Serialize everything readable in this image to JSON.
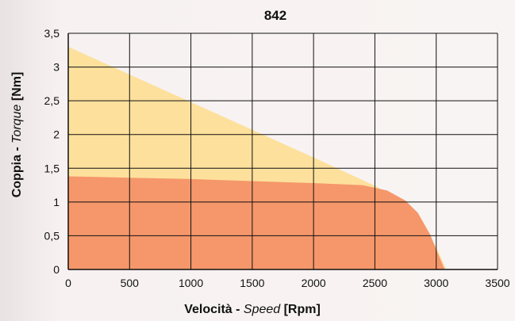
{
  "chart_data": {
    "type": "area",
    "title": "842",
    "xlabel": {
      "prefix": "Velocità - ",
      "italic": "Speed",
      "suffix": " [Rpm]"
    },
    "ylabel": {
      "prefix": "Coppia - ",
      "italic": "Torque",
      "suffix": " [Nm]"
    },
    "xlim": [
      0,
      3500
    ],
    "ylim": [
      0,
      3.5
    ],
    "x_ticks": [
      0,
      500,
      1000,
      1500,
      2000,
      2500,
      3000,
      3500
    ],
    "x_tick_labels": [
      "0",
      "500",
      "1000",
      "1500",
      "2000",
      "2500",
      "3000",
      "3500"
    ],
    "y_ticks": [
      0,
      0.5,
      1,
      1.5,
      2,
      2.5,
      3,
      3.5
    ],
    "y_tick_labels": [
      "0",
      "0,5",
      "1",
      "1,5",
      "2",
      "2,5",
      "3",
      "3,5"
    ],
    "grid": true,
    "series": [
      {
        "fill": "#fde09c",
        "x": [
          0,
          500,
          1000,
          1500,
          2000,
          2500,
          2700,
          2900,
          3000,
          3050,
          3080
        ],
        "y": [
          3.3,
          2.89,
          2.48,
          2.07,
          1.66,
          1.24,
          1.04,
          0.64,
          0.33,
          0.13,
          0
        ]
      },
      {
        "fill": "#f5976a",
        "x": [
          0,
          500,
          1000,
          1500,
          2000,
          2400,
          2600,
          2750,
          2850,
          2950,
          3000,
          3050,
          3070
        ],
        "y": [
          1.38,
          1.36,
          1.34,
          1.31,
          1.28,
          1.25,
          1.17,
          1.02,
          0.84,
          0.52,
          0.3,
          0.08,
          0
        ]
      }
    ]
  }
}
